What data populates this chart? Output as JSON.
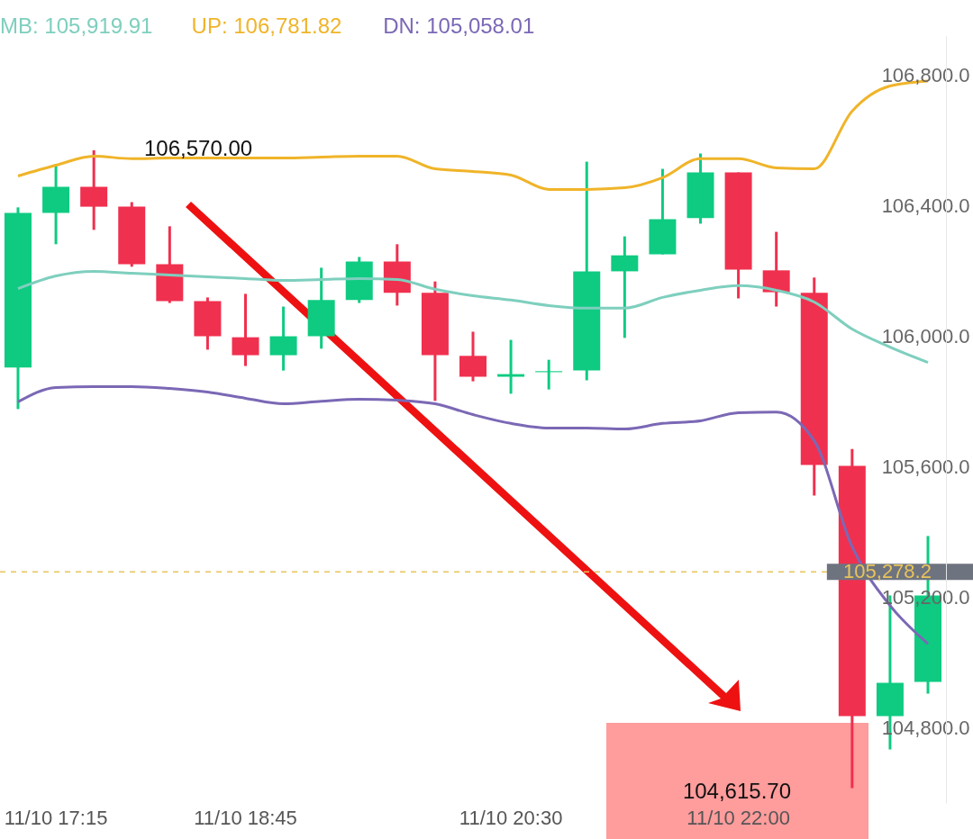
{
  "chart_data": {
    "type": "candlestick",
    "categories": [
      null,
      "11/10 17:15",
      null,
      null,
      null,
      null,
      "11/10 18:45",
      null,
      null,
      null,
      null,
      null,
      null,
      "11/10 20:30",
      null,
      null,
      null,
      null,
      null,
      "11/10 22:00",
      null,
      null,
      null,
      null,
      null
    ],
    "ohlc": [
      [
        105904,
        106395,
        105777,
        106378
      ],
      [
        106378,
        106527,
        106282,
        106458
      ],
      [
        106458,
        106570,
        106326,
        106397
      ],
      [
        106397,
        106411,
        106213,
        106221
      ],
      [
        106221,
        106337,
        106102,
        106108
      ],
      [
        106108,
        106119,
        105959,
        106000
      ],
      [
        105997,
        106130,
        105909,
        105942
      ],
      [
        105942,
        106091,
        105895,
        106000
      ],
      [
        106000,
        106210,
        105962,
        106111
      ],
      [
        106111,
        106243,
        106102,
        106229
      ],
      [
        106229,
        106282,
        106094,
        106133
      ],
      [
        106133,
        106168,
        105802,
        105942
      ],
      [
        105940,
        106014,
        105862,
        105876
      ],
      [
        105876,
        105989,
        105824,
        105884
      ],
      [
        105890,
        105928,
        105837,
        105893
      ],
      [
        105895,
        106535,
        105865,
        106199
      ],
      [
        106199,
        106306,
        105995,
        106248
      ],
      [
        106251,
        106513,
        106251,
        106359
      ],
      [
        106362,
        106560,
        106345,
        106502
      ],
      [
        106502,
        106502,
        106116,
        106204
      ],
      [
        106202,
        106320,
        106091,
        106135
      ],
      [
        106133,
        106180,
        105512,
        105606
      ],
      [
        105603,
        105655,
        104615.7,
        104836
      ],
      [
        104836,
        105206,
        104734,
        104938
      ],
      [
        104941,
        105388,
        104905,
        105206
      ]
    ],
    "colors": [
      "#0ecb81",
      "#0ecb81",
      "#f0304f",
      "#f0304f",
      "#f0304f",
      "#f0304f",
      "#f0304f",
      "#0ecb81",
      "#0ecb81",
      "#0ecb81",
      "#f0304f",
      "#f0304f",
      "#f0304f",
      "#0ecb81",
      "#0ecb81",
      "#0ecb81",
      "#0ecb81",
      "#0ecb81",
      "#0ecb81",
      "#f0304f",
      "#f0304f",
      "#f0304f",
      "#f0304f",
      "#0ecb81",
      "#0ecb81"
    ],
    "series": [
      {
        "name": "MB: 105,919.91",
        "type": "line",
        "color": "#7ecfbe",
        "values": [
          106146,
          106185,
          106199,
          106193,
          106188,
          106182,
          106177,
          106171,
          106174,
          106177,
          106174,
          106144,
          106124,
          106111,
          106094,
          106086,
          106086,
          106119,
          106141,
          106155,
          106141,
          106105,
          106022,
          105967,
          105920
        ]
      },
      {
        "name": "UP: 106,781.82",
        "type": "line",
        "color": "#f0b429",
        "values": [
          106491,
          106524,
          106552,
          106544,
          106546,
          106546,
          106546,
          106546,
          106549,
          106552,
          106552,
          106513,
          106505,
          106494,
          106450,
          106450,
          106455,
          106486,
          106544,
          106544,
          106516,
          106513,
          106690,
          106767,
          106782
        ]
      },
      {
        "name": "DN: 105,058.01",
        "type": "line",
        "color": "#7b68b5",
        "values": [
          105799,
          105843,
          105846,
          105846,
          105840,
          105829,
          105810,
          105793,
          105801,
          105807,
          105804,
          105793,
          105760,
          105733,
          105719,
          105719,
          105716,
          105733,
          105741,
          105766,
          105768,
          105680,
          105355,
          105175,
          105058
        ]
      }
    ],
    "ylim": [
      104570,
      106920
    ],
    "yticks": [
      {
        "value": 104800,
        "label": "104,800.0"
      },
      {
        "value": 105200,
        "label": "105,200.0"
      },
      {
        "value": 105600,
        "label": "105,600.0"
      },
      {
        "value": 106000,
        "label": "106,000.0"
      },
      {
        "value": 106400,
        "label": "106,400.0"
      },
      {
        "value": 106800,
        "label": "106,800.0"
      }
    ],
    "ref_lines": [
      {
        "axis": "y",
        "value": 105278.2,
        "label": "105,278.2",
        "color": "#e8c45a",
        "line_style": "dashed"
      }
    ],
    "annotations": [
      "106,570.00",
      "104,615.70"
    ],
    "legend": "top left",
    "grid": false
  }
}
